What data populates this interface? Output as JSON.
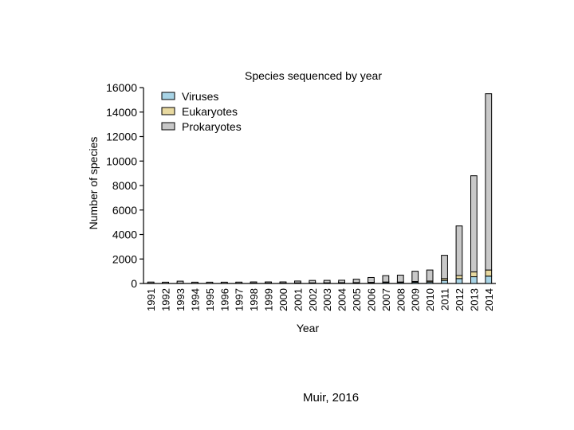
{
  "chart_data": {
    "type": "bar",
    "stacked": true,
    "title": "Species sequenced by year",
    "xlabel": "Year",
    "ylabel": "Number of species",
    "ylim": [
      0,
      16000
    ],
    "yticks": [
      0,
      2000,
      4000,
      6000,
      8000,
      10000,
      12000,
      14000,
      16000
    ],
    "legend_position": "top-left",
    "grid": false,
    "categories": [
      "1991",
      "1992",
      "1993",
      "1994",
      "1995",
      "1996",
      "1997",
      "1998",
      "1999",
      "2000",
      "2001",
      "2002",
      "2003",
      "2004",
      "2005",
      "2006",
      "2007",
      "2008",
      "2009",
      "2010",
      "2011",
      "2012",
      "2013",
      "2014"
    ],
    "series": [
      {
        "name": "Viruses",
        "color": "#a8d4e6",
        "values": [
          20,
          10,
          15,
          10,
          10,
          10,
          15,
          20,
          20,
          20,
          40,
          40,
          40,
          50,
          50,
          60,
          80,
          80,
          100,
          120,
          250,
          400,
          550,
          600
        ]
      },
      {
        "name": "Eukaryotes",
        "color": "#e8d9a0",
        "values": [
          0,
          0,
          0,
          0,
          0,
          0,
          0,
          5,
          5,
          5,
          10,
          10,
          15,
          15,
          20,
          30,
          40,
          40,
          60,
          80,
          150,
          250,
          400,
          500
        ]
      },
      {
        "name": "Prokaryotes",
        "color": "#c8c8c8",
        "values": [
          10,
          10,
          175,
          20,
          30,
          20,
          30,
          60,
          80,
          100,
          150,
          200,
          200,
          200,
          280,
          400,
          520,
          560,
          840,
          900,
          1900,
          4050,
          7850,
          14400
        ]
      }
    ]
  },
  "caption": "Muir, 2016"
}
